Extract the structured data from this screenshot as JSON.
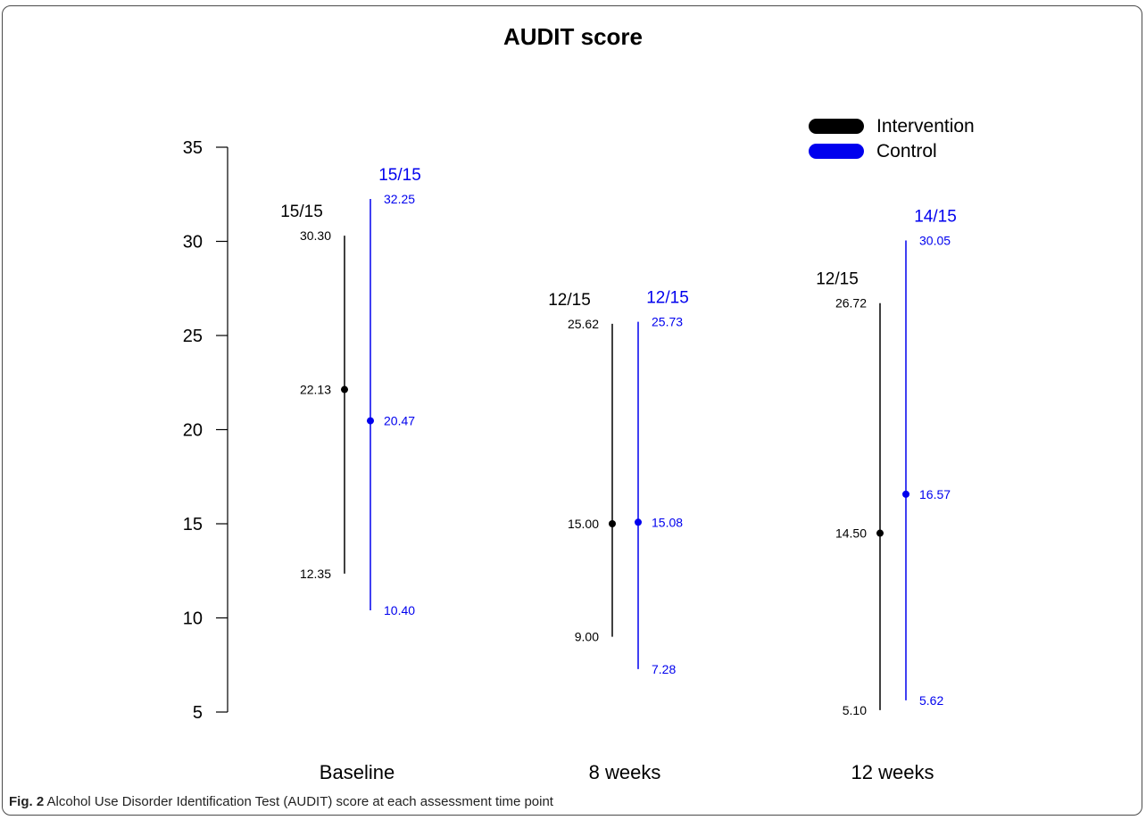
{
  "chart_data": {
    "type": "range",
    "title": "AUDIT score",
    "xlabel": "",
    "ylabel": "",
    "ylim": [
      5,
      35
    ],
    "yticks": [
      5,
      10,
      15,
      20,
      25,
      30,
      35
    ],
    "categories": [
      "Baseline",
      "8 weeks",
      "12 weeks"
    ],
    "legend": {
      "position": "top-right"
    },
    "series": [
      {
        "name": "Intervention",
        "color": "#000000",
        "points": [
          {
            "mean": 22.13,
            "lower": 12.35,
            "upper": 30.3,
            "mean_label": "22.13",
            "lower_label": "12.35",
            "upper_label": "30.30",
            "n_label": "15/15"
          },
          {
            "mean": 15.0,
            "lower": 9.0,
            "upper": 25.62,
            "mean_label": "15.00",
            "lower_label": "9.00",
            "upper_label": "25.62",
            "n_label": "12/15"
          },
          {
            "mean": 14.5,
            "lower": 5.1,
            "upper": 26.72,
            "mean_label": "14.50",
            "lower_label": "5.10",
            "upper_label": "26.72",
            "n_label": "12/15"
          }
        ]
      },
      {
        "name": "Control",
        "color": "#0000ee",
        "points": [
          {
            "mean": 20.47,
            "lower": 10.4,
            "upper": 32.25,
            "mean_label": "20.47",
            "lower_label": "10.40",
            "upper_label": "32.25",
            "n_label": "15/15"
          },
          {
            "mean": 15.08,
            "lower": 7.28,
            "upper": 25.73,
            "mean_label": "15.08",
            "lower_label": "7.28",
            "upper_label": "25.73",
            "n_label": "12/15"
          },
          {
            "mean": 16.57,
            "lower": 5.62,
            "upper": 30.05,
            "mean_label": "16.57",
            "lower_label": "5.62",
            "upper_label": "30.05",
            "n_label": "14/15"
          }
        ]
      }
    ]
  },
  "caption": {
    "label": "Fig. 2",
    "text": "Alcohol Use Disorder Identification Test (AUDIT) score at each assessment time point"
  }
}
